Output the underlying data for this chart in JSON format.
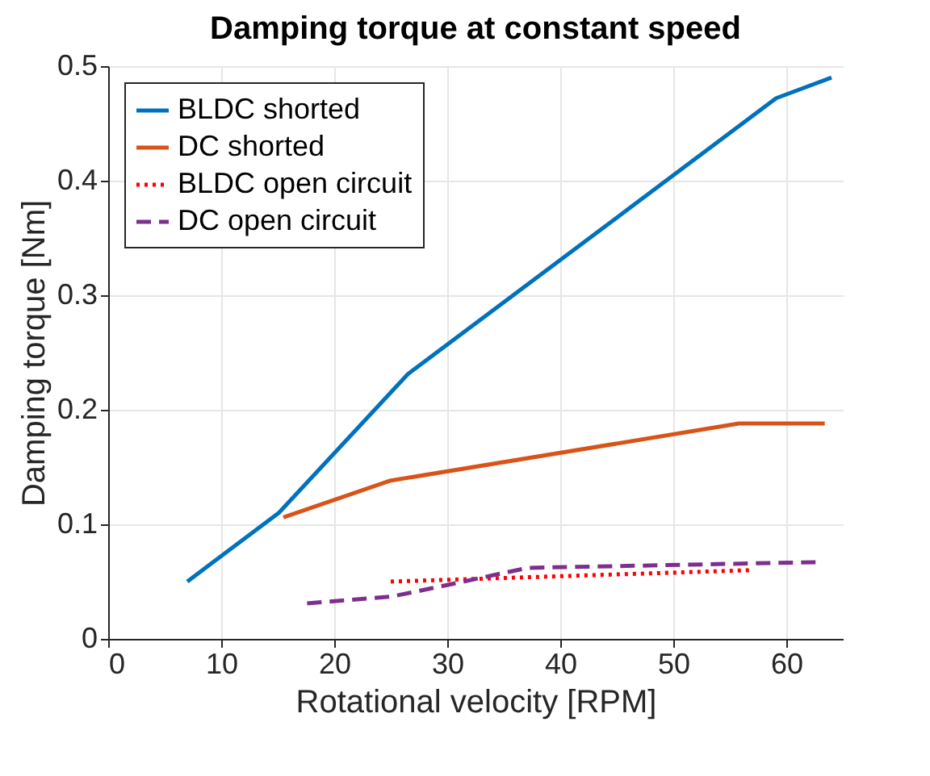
{
  "chart_data": {
    "type": "line",
    "title": "Damping torque at constant speed",
    "xlabel": "Rotational velocity [RPM]",
    "ylabel": "Damping torque [Nm]",
    "xlim": [
      0,
      65
    ],
    "xticks": [
      0,
      10,
      20,
      30,
      40,
      50,
      60
    ],
    "ylim": [
      0,
      0.5
    ],
    "yticks": [
      0,
      0.1,
      0.2,
      0.3,
      0.4,
      0.5
    ],
    "grid": true,
    "legend": "top left",
    "series": [
      {
        "name": "BLDC shorted",
        "color": "#0072bd",
        "line_style": "solid",
        "x": [
          7,
          15.1,
          26.5,
          59.1,
          64
        ],
        "values": [
          0.05,
          0.11,
          0.231,
          0.472,
          0.49
        ]
      },
      {
        "name": "DC shorted",
        "color": "#d95319",
        "line_style": "solid",
        "x": [
          15.5,
          24.9,
          55.8,
          63.4
        ],
        "values": [
          0.106,
          0.138,
          0.188,
          0.188
        ]
      },
      {
        "name": "BLDC open circuit",
        "color": "#ff0000",
        "line_style": "dotted",
        "x": [
          25,
          56.9
        ],
        "values": [
          0.05,
          0.06
        ]
      },
      {
        "name": "DC open circuit",
        "color": "#7e2f8e",
        "line_style": "dashed",
        "x": [
          17.6,
          25.1,
          30,
          37.1,
          62.7
        ],
        "values": [
          0.031,
          0.037,
          0.047,
          0.062,
          0.067
        ]
      }
    ]
  }
}
